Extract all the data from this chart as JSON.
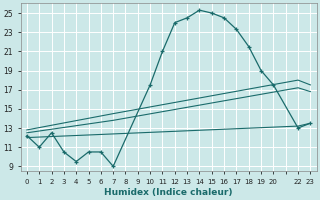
{
  "xlabel": "Humidex (Indice chaleur)",
  "bg_color": "#cce8e8",
  "grid_color": "#b8d8d8",
  "line_color": "#1a6b6b",
  "xlim": [
    -0.5,
    23.5
  ],
  "ylim": [
    8.5,
    26
  ],
  "yticks": [
    9,
    11,
    13,
    15,
    17,
    19,
    21,
    23,
    25
  ],
  "xtick_labels": [
    "0",
    "1",
    "2",
    "3",
    "4",
    "5",
    "6",
    "7",
    "8",
    "9",
    "10",
    "11",
    "12",
    "13",
    "14",
    "15",
    "16",
    "17",
    "18",
    "19",
    "20",
    "",
    "22",
    "23"
  ],
  "series1_x": [
    0,
    1,
    2,
    3,
    4,
    5,
    6,
    7,
    10,
    11,
    12,
    13,
    14,
    15,
    16,
    17,
    18,
    19,
    20,
    22,
    23
  ],
  "series1_y": [
    12.2,
    11.0,
    12.5,
    10.5,
    9.5,
    10.5,
    10.5,
    9.0,
    17.5,
    21.0,
    24.0,
    24.5,
    25.3,
    25.0,
    24.5,
    23.3,
    21.5,
    19.0,
    17.5,
    13.0,
    13.5
  ],
  "series2_x": [
    0,
    7,
    22,
    23
  ],
  "series2_y": [
    12.8,
    14.5,
    18.0,
    17.5
  ],
  "series3_x": [
    0,
    7,
    22,
    23
  ],
  "series3_y": [
    12.5,
    13.8,
    17.2,
    16.8
  ],
  "series4_x": [
    0,
    22,
    23
  ],
  "series4_y": [
    12.0,
    13.2,
    13.5
  ]
}
